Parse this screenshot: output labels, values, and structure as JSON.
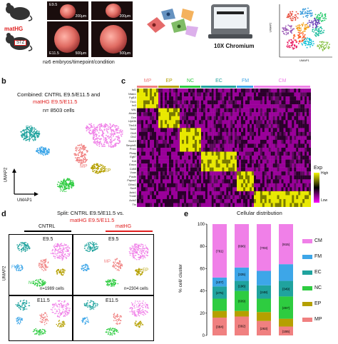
{
  "panel_a": {
    "mouse_labels": [
      "matHG",
      "STZ"
    ],
    "photo_labels": [
      {
        "stage": "E9.5",
        "scale": "200μm"
      },
      {
        "stage": "",
        "scale": "200μm"
      },
      {
        "stage": "E11.5",
        "scale": "500μm"
      },
      {
        "stage": "",
        "scale": "500μm"
      }
    ],
    "embryo_caption": "n≥6 embryos/timepoint/condition",
    "chromium_label": "10X Chromium",
    "umap_axis_x": "UMAP1",
    "umap_axis_y": "UMAP2"
  },
  "panel_b": {
    "letter": "b",
    "title_line1": "Combined: CNTRL E9.5/E11.5 and",
    "title_line2": "matHG E9.5/E11.5",
    "title_line3": "n= 8503 cells",
    "clusters": [
      "EC",
      "FM",
      "MP",
      "NC",
      "EP",
      "CM"
    ],
    "axis_y": "UMAP2",
    "axis_x": "UMAP1"
  },
  "panel_c": {
    "letter": "c",
    "column_groups": [
      "MP",
      "EP",
      "NC",
      "EC",
      "FM",
      "CM"
    ],
    "genes": [
      "Isl1",
      "Nfatc1",
      "Fgf10",
      "Tbx1",
      "Irx3",
      "Wt1",
      "Alcam",
      "Dcn",
      "Upk3b",
      "Tbx18",
      "Sox2",
      "Dlx5",
      "Dlx2",
      "Sox10",
      "Serpinf1",
      "Prrx1",
      "Plvap",
      "Egfl7",
      "Kdr",
      "Emcn",
      "Cdh5",
      "Vcan",
      "Postn",
      "Papss2",
      "Cthrc1",
      "Sox9",
      "Actc1",
      "Tnnt2",
      "Actn2",
      "Ttn"
    ],
    "legend_title": "Exp",
    "legend_high": "High",
    "legend_low": "Low"
  },
  "panel_d": {
    "letter": "d",
    "title_line1": "Split: CNTRL E9.5/E11.5 vs.",
    "title_line2": "matHG E9.5/E11.5",
    "col_labels": [
      "CNTRL",
      "matHG"
    ],
    "stages": [
      "E9.5",
      "E9.5",
      "E11.5",
      "E11.5"
    ],
    "cell_counts": [
      "n=1989 cells",
      "n=2304 cells"
    ],
    "clusters": [
      "EC",
      "CM",
      "FM",
      "MP",
      "EP",
      "NC"
    ],
    "axis_y": "UMAP2"
  },
  "panel_e": {
    "letter": "e",
    "title": "Cellular distribution",
    "ylabel": "% cell/ cluster",
    "yticks": [
      "100",
      "80",
      "60",
      "40",
      "20",
      "0"
    ],
    "legend": [
      "CM",
      "FM",
      "EC",
      "NC",
      "EP",
      "MP"
    ]
  },
  "colors": {
    "MP": "#f08080",
    "EP": "#b5a000",
    "NC": "#2ecc40",
    "EC": "#20a39e",
    "FM": "#3da6e8",
    "CM": "#f080e8",
    "red": "#e02020"
  },
  "chart_data": {
    "type": "bar",
    "title": "Cellular distribution",
    "ylabel": "% cell/ cluster",
    "ylim": [
      0,
      100
    ],
    "categories": [
      "bar1",
      "bar2",
      "bar3",
      "bar4"
    ],
    "series": [
      {
        "name": "MP",
        "values": [
          16,
          17,
          13,
          8
        ],
        "counts": [
          "(384)",
          "(392)",
          "(263)",
          "(155)"
        ]
      },
      {
        "name": "EP",
        "values": [
          6,
          5,
          8,
          7
        ],
        "counts": [
          "",
          "",
          "",
          ""
        ]
      },
      {
        "name": "NC",
        "values": [
          11,
          18,
          12,
          20
        ],
        "counts": [
          "",
          "(609)",
          "",
          "(457)"
        ]
      },
      {
        "name": "EC",
        "values": [
          11,
          9,
          12,
          14
        ],
        "counts": [
          "(275)",
          "(196)",
          "(248)",
          "(349)"
        ]
      },
      {
        "name": "FM",
        "values": [
          8,
          12,
          13,
          15
        ],
        "counts": [
          "(107)",
          "(335)",
          "",
          ""
        ]
      },
      {
        "name": "CM",
        "values": [
          48,
          39,
          42,
          36
        ],
        "counts": [
          "(761)",
          "(896)",
          "(703)",
          "(915)"
        ]
      }
    ]
  }
}
